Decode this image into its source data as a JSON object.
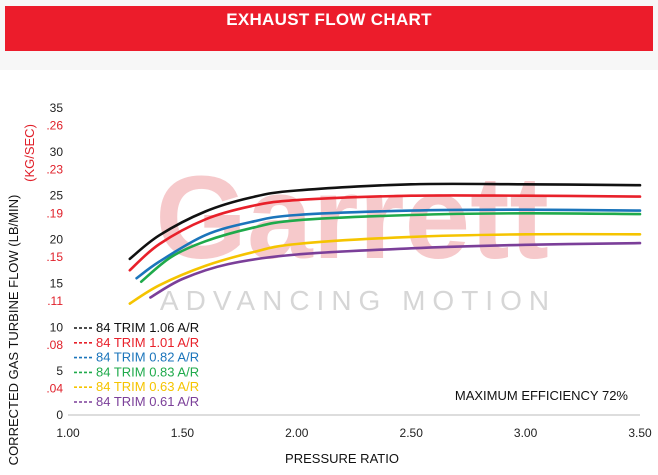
{
  "header": {
    "title": "EXHAUST FLOW CHART"
  },
  "watermark": {
    "brand": "Garrett",
    "tagline": "ADVANCING MOTION"
  },
  "chart_data": {
    "type": "line",
    "xlabel": "PRESSURE RATIO",
    "ylabel": "CORRECTED GAS TURBINE FLOW (LB/MIN)",
    "ylabel_secondary": "(KG/SEC)",
    "xlim": [
      1.0,
      3.5
    ],
    "ylim": [
      0,
      35
    ],
    "x_ticks": [
      "1.00",
      "1.50",
      "2.00",
      "2.50",
      "3.00",
      "3.50"
    ],
    "y_ticks": [
      "0",
      "5",
      "10",
      "15",
      "20",
      "25",
      "30",
      "35"
    ],
    "y_ticks_secondary": [
      ".04",
      ".08",
      ".11",
      ".15",
      ".19",
      ".23",
      ".26"
    ],
    "grid": false,
    "legend_position": "bottom-left",
    "annotation": "MAXIMUM EFFICIENCY 72%",
    "series": [
      {
        "name": "84 TRIM 1.06 A/R",
        "color": "#111111",
        "x": [
          1.27,
          1.4,
          1.6,
          1.8,
          2.0,
          2.5,
          3.0,
          3.5
        ],
        "y": [
          17.8,
          20.5,
          23.2,
          24.8,
          25.6,
          26.3,
          26.3,
          26.2
        ]
      },
      {
        "name": "84 TRIM 1.01 A/R",
        "color": "#e8202a",
        "x": [
          1.27,
          1.4,
          1.6,
          1.8,
          2.0,
          2.5,
          3.0,
          3.5
        ],
        "y": [
          16.5,
          19.5,
          22.3,
          23.8,
          24.5,
          25.0,
          25.0,
          24.9
        ]
      },
      {
        "name": "84 TRIM 0.82 A/R",
        "color": "#1b75bb",
        "x": [
          1.3,
          1.4,
          1.6,
          1.8,
          2.0,
          2.5,
          3.0,
          3.5
        ],
        "y": [
          15.6,
          17.5,
          20.5,
          22.0,
          22.8,
          23.3,
          23.4,
          23.3
        ]
      },
      {
        "name": "84 TRIM 0.83 A/R",
        "color": "#1faa4b",
        "x": [
          1.32,
          1.45,
          1.6,
          1.8,
          2.0,
          2.5,
          3.0,
          3.5
        ],
        "y": [
          15.2,
          18.0,
          19.8,
          21.3,
          22.2,
          22.8,
          23.0,
          22.9
        ]
      },
      {
        "name": "84 TRIM 0.63 A/R",
        "color": "#f5c400",
        "x": [
          1.27,
          1.4,
          1.6,
          1.8,
          2.0,
          2.5,
          3.0,
          3.5
        ],
        "y": [
          12.7,
          14.8,
          17.0,
          18.5,
          19.5,
          20.3,
          20.6,
          20.6
        ]
      },
      {
        "name": "84 TRIM 0.61 A/R",
        "color": "#7b3f99",
        "x": [
          1.36,
          1.5,
          1.7,
          2.0,
          2.5,
          3.0,
          3.5
        ],
        "y": [
          13.4,
          15.5,
          17.2,
          18.3,
          19.0,
          19.4,
          19.6
        ]
      }
    ]
  }
}
